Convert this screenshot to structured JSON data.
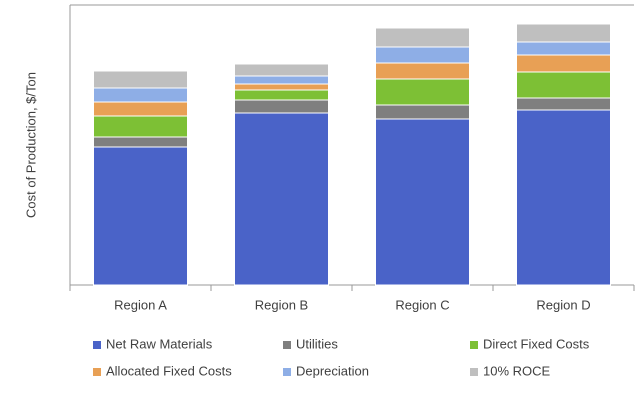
{
  "chart_data": {
    "type": "stacked_bar",
    "y_label": "Cost of Production, $/Ton",
    "categories": [
      "Region A",
      "Region B",
      "Region C",
      "Region D"
    ],
    "series": [
      {
        "name": "Net Raw Materials",
        "color": "#4a63c8",
        "values": [
          138,
          172,
          166,
          175
        ]
      },
      {
        "name": "Utilities",
        "color": "#7f7f7f",
        "values": [
          10,
          13,
          14,
          12
        ]
      },
      {
        "name": "Direct Fixed Costs",
        "color": "#7dc035",
        "values": [
          21,
          10,
          26,
          26
        ]
      },
      {
        "name": "Allocated Fixed Costs",
        "color": "#e8a055",
        "values": [
          14,
          6,
          16,
          17
        ]
      },
      {
        "name": "Depreciation",
        "color": "#8eaee6",
        "values": [
          14,
          8,
          16,
          13
        ]
      },
      {
        "name": "10% ROCE",
        "color": "#bfbfbf",
        "values": [
          17,
          12,
          19,
          18
        ]
      }
    ],
    "ylim": [
      0,
      280
    ]
  }
}
